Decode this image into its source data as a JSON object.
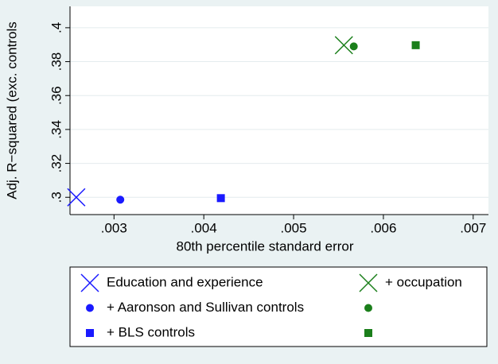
{
  "chart_data": {
    "type": "scatter",
    "xlabel": "80th percentile standard error",
    "ylabel": "Adj. R−squared (exc. controls",
    "xlim": [
      0.00251,
      0.00717
    ],
    "ylim": [
      0.2898,
      0.4126
    ],
    "xticks": [
      {
        "value": 0.003,
        "label": ".003"
      },
      {
        "value": 0.004,
        "label": ".004"
      },
      {
        "value": 0.005,
        "label": ".005"
      },
      {
        "value": 0.006,
        "label": ".006"
      },
      {
        "value": 0.007,
        "label": ".007"
      }
    ],
    "yticks": [
      {
        "value": 0.3,
        "label": ".3"
      },
      {
        "value": 0.32,
        "label": ".32"
      },
      {
        "value": 0.34,
        "label": ".34"
      },
      {
        "value": 0.36,
        "label": ".36"
      },
      {
        "value": 0.38,
        "label": ".38"
      },
      {
        "value": 0.4,
        "label": ".4"
      }
    ],
    "grid": true,
    "series": [
      {
        "name": "Education and experience",
        "color": "#1a1aff",
        "marker": "x",
        "x": [
          0.00258
        ],
        "values": [
          0.3
        ]
      },
      {
        "name": "+ occupation",
        "color": "#1b7f1b",
        "marker": "x",
        "x": [
          0.00556
        ],
        "values": [
          0.3897
        ]
      },
      {
        "name": "+ Aaronson and Sullivan controls",
        "color": "#1a1aff",
        "marker": "circle",
        "x": [
          0.00307
        ],
        "values": [
          0.2986
        ]
      },
      {
        "color": "#1b7f1b",
        "marker": "circle",
        "x": [
          0.00567
        ],
        "values": [
          0.389
        ]
      },
      {
        "name": "+ BLS controls",
        "color": "#1a1aff",
        "marker": "square",
        "x": [
          0.00419
        ],
        "values": [
          0.2995
        ]
      },
      {
        "color": "#1b7f1b",
        "marker": "square",
        "x": [
          0.00636
        ],
        "values": [
          0.3897
        ]
      }
    ]
  }
}
